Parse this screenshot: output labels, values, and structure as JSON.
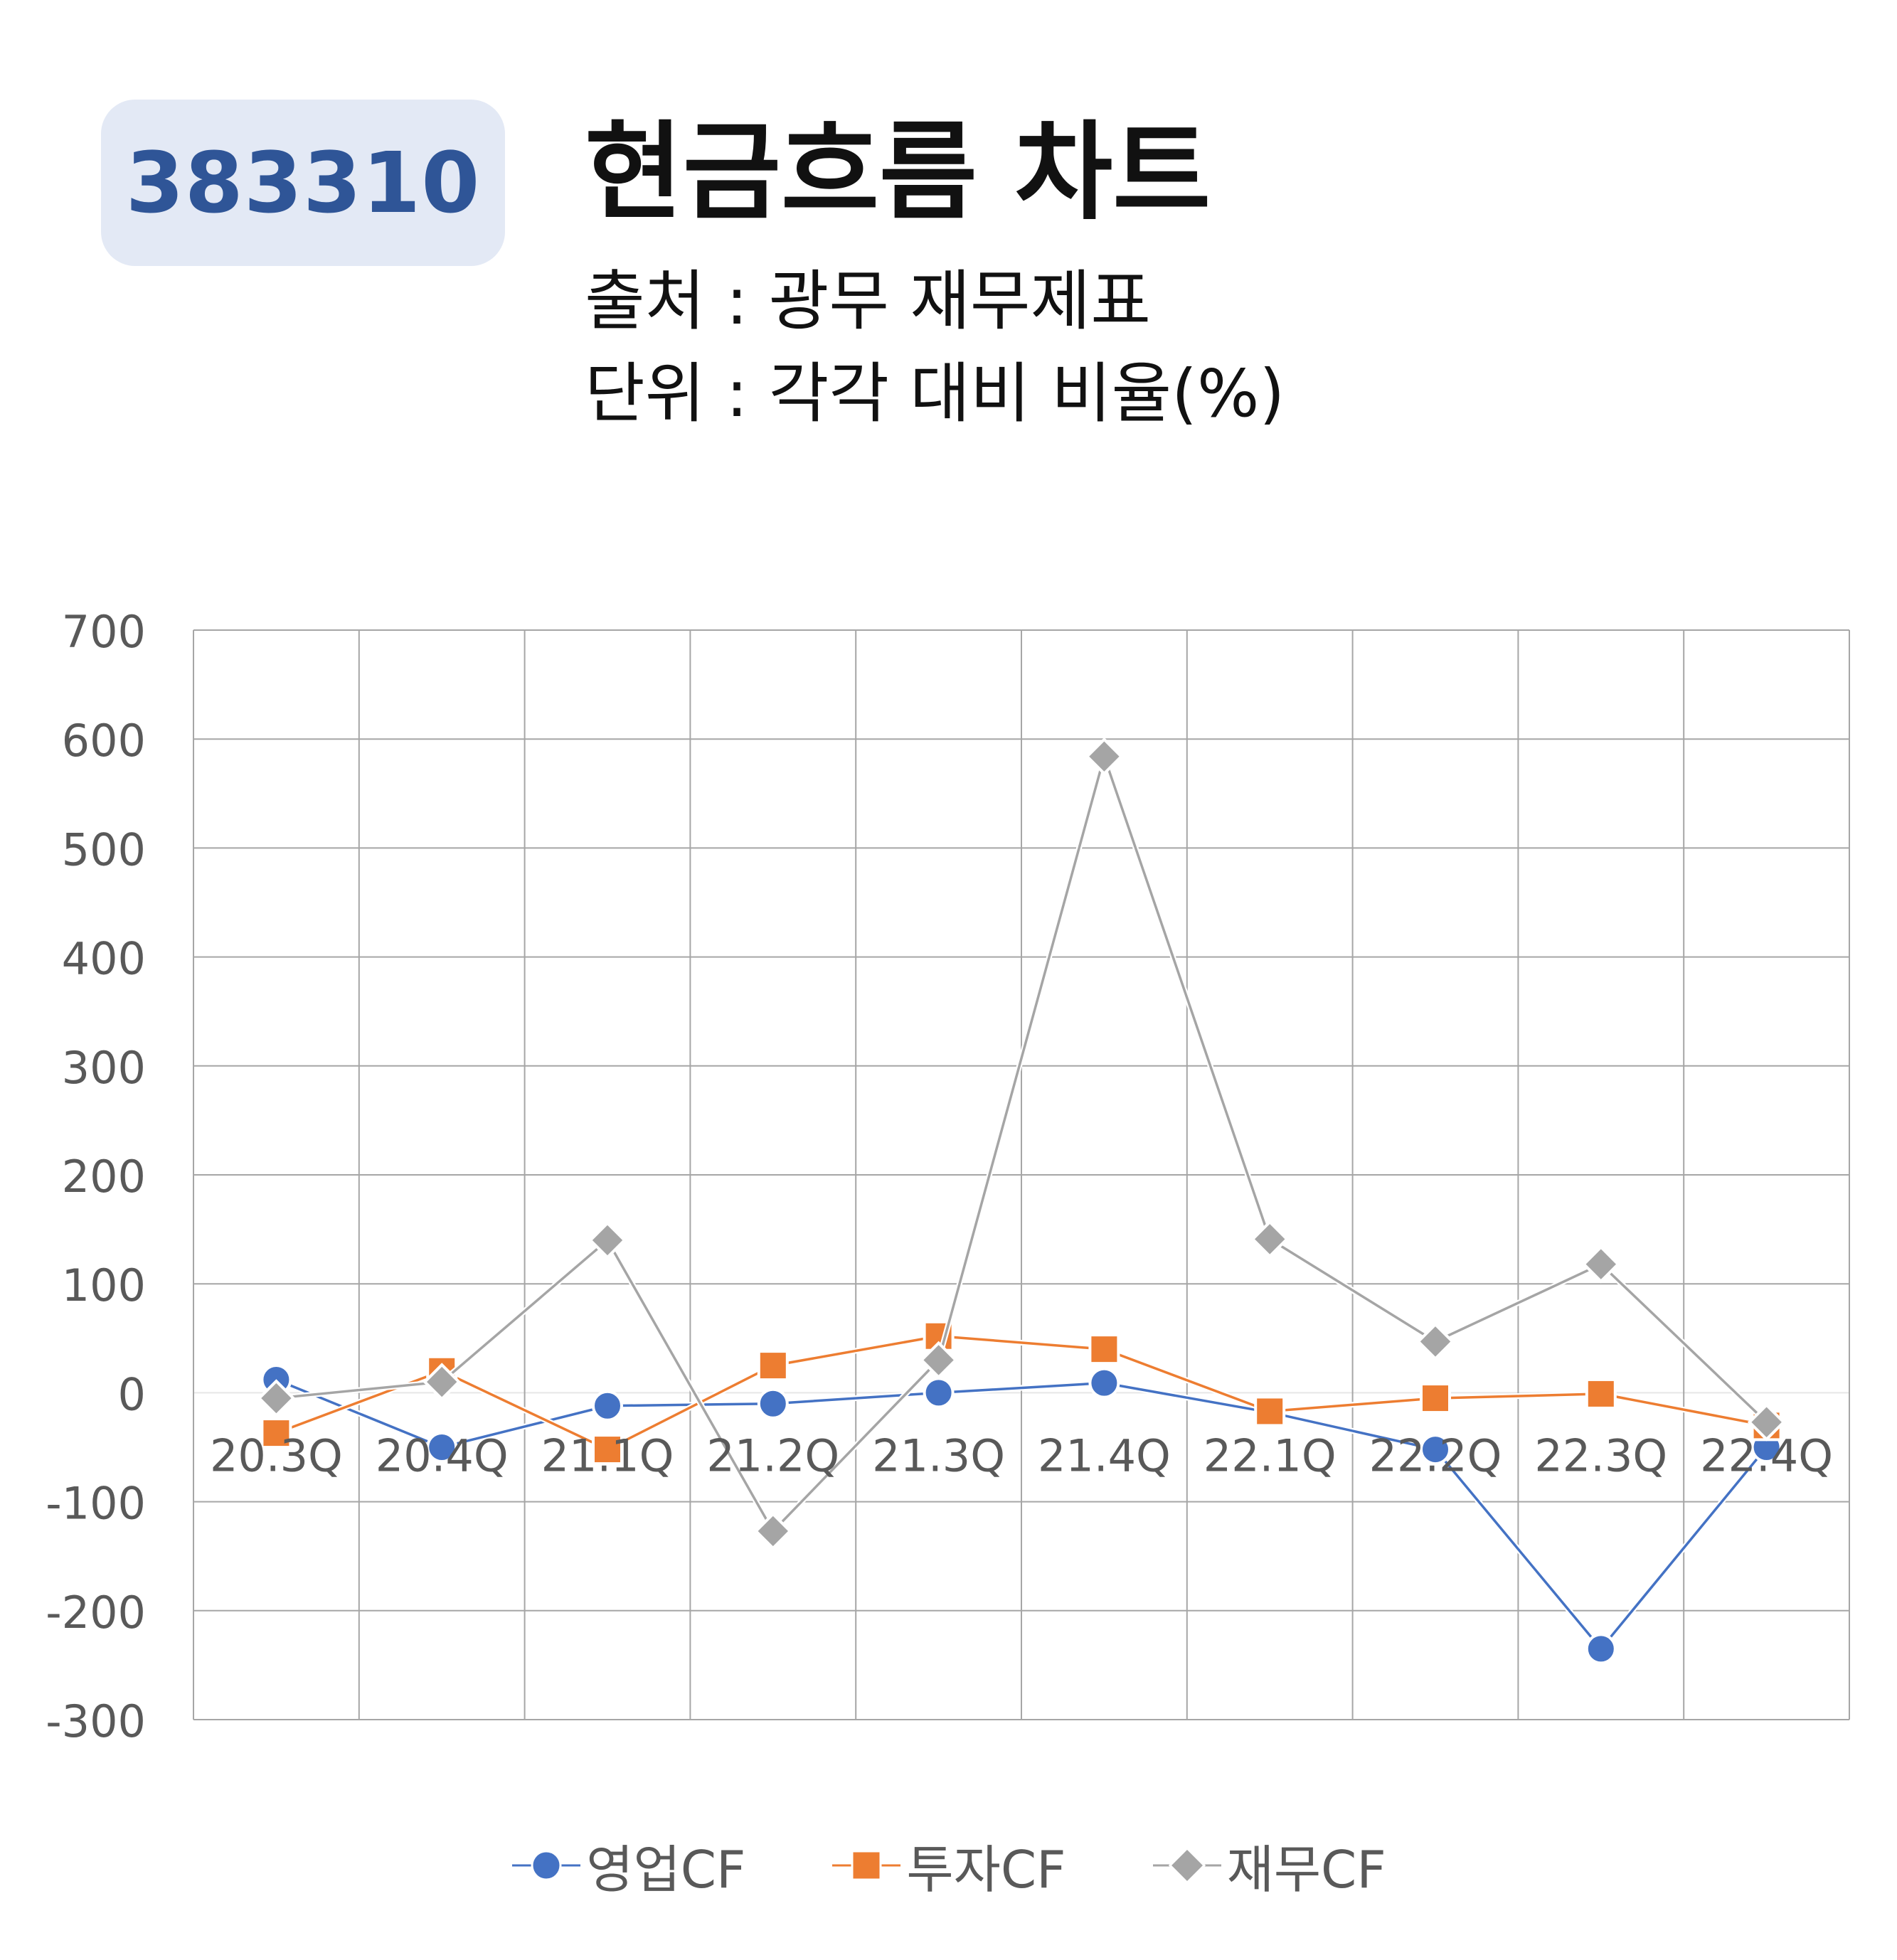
{
  "header": {
    "code": "383310",
    "title": "현금흐름 차트",
    "source": "출처 : 광무 재무제표",
    "unit": "단위 : 각각 대비 비율(%)"
  },
  "chart_data": {
    "type": "line",
    "title": "현금흐름 차트",
    "categories": [
      "20.3Q",
      "20.4Q",
      "21.1Q",
      "21.2Q",
      "21.3Q",
      "21.4Q",
      "22.1Q",
      "22.2Q",
      "22.3Q",
      "22.4Q"
    ],
    "ylim": [
      -300,
      700
    ],
    "yticks": [
      -300,
      -200,
      -100,
      0,
      100,
      200,
      300,
      400,
      500,
      600,
      700
    ],
    "grid": true,
    "legend_position": "bottom",
    "series": [
      {
        "name": "영업CF",
        "marker": "circle",
        "color": "#4472c4",
        "values": [
          12,
          -50,
          -12,
          -10,
          0,
          9,
          -18,
          -52,
          -235,
          -50
        ]
      },
      {
        "name": "투자CF",
        "marker": "square",
        "color": "#ed7d31",
        "values": [
          -37,
          20,
          -52,
          25,
          52,
          40,
          -17,
          -5,
          -1,
          -30
        ]
      },
      {
        "name": "재무CF",
        "marker": "diamond",
        "color": "#a5a5a5",
        "values": [
          -5,
          10,
          140,
          -127,
          30,
          584,
          141,
          47,
          118,
          -27
        ]
      }
    ]
  }
}
